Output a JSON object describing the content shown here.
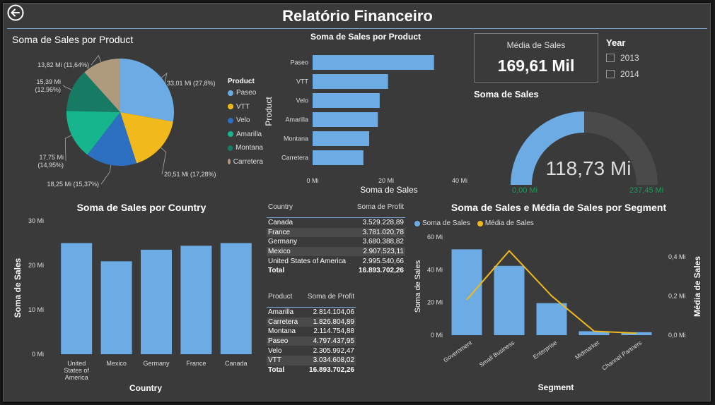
{
  "header": {
    "title": "Relatório Financeiro"
  },
  "colors": {
    "blue": "#6cabe3",
    "yellow": "#f2b91c",
    "darkblue": "#2d6fc1",
    "teal": "#17b58d",
    "darkteal": "#177a63",
    "tan": "#b09a7d",
    "gaugeBlue": "#6cabe3",
    "gaugeGreen": "#1e9a5a"
  },
  "pie_section": {
    "title": "Soma de Sales por Product",
    "legend_title": "Product"
  },
  "product_bar_section": {
    "title": "Soma de Sales por Product"
  },
  "card": {
    "label": "Média de Sales",
    "value": "169,61 Mil"
  },
  "year_slicer": {
    "title": "Year",
    "options": [
      "2013",
      "2014"
    ]
  },
  "gauge": {
    "title": "Soma de Sales",
    "value_text": "118,73 Mi",
    "min_label": "0,00 Mi",
    "max_label": "237,45 Mi"
  },
  "country_bar_section": {
    "title": "Soma de Sales por Country"
  },
  "combo_section": {
    "title": "Soma de Sales e Média de Sales por Segment",
    "legend": [
      "Soma de  Sales",
      "Média de  Sales"
    ]
  },
  "country_table": {
    "headers": [
      "Country",
      "Soma de Profit"
    ],
    "rows": [
      [
        "Canada",
        "3.529.228,89"
      ],
      [
        "France",
        "3.781.020,78"
      ],
      [
        "Germany",
        "3.680.388,82"
      ],
      [
        "Mexico",
        "2.907.523,11"
      ],
      [
        "United States of America",
        "2.995.540,66"
      ]
    ],
    "total": [
      "Total",
      "16.893.702,26"
    ]
  },
  "product_table": {
    "headers": [
      "Product",
      "Soma de Profit"
    ],
    "rows": [
      [
        "Amarilla",
        "2.814.104,06"
      ],
      [
        "Carretera",
        "1.826.804,89"
      ],
      [
        "Montana",
        "2.114.754,88"
      ],
      [
        "Paseo",
        "4.797.437,95"
      ],
      [
        "Velo",
        "2.305.992,47"
      ],
      [
        "VTT",
        "3.034.608,02"
      ]
    ],
    "total": [
      "Total",
      "16.893.702,26"
    ]
  },
  "chart_data": [
    {
      "type": "pie",
      "title": "Soma de Sales por Product",
      "legend_title": "Product",
      "categories": [
        "Paseo",
        "VTT",
        "Velo",
        "Amarilla",
        "Montana",
        "Carretera"
      ],
      "values": [
        33.01,
        20.51,
        18.25,
        17.75,
        15.39,
        13.82
      ],
      "labels": [
        "33,01 Mi (27,8%)",
        "20,51 Mi (17,28%)",
        "18,25 Mi (15,37%)",
        "17,75 Mi (14,95%)",
        "15,39 Mi (12,96%)",
        "13,82 Mi (11,64%)"
      ]
    },
    {
      "type": "bar",
      "orientation": "horizontal",
      "title": "Soma de Sales por Product",
      "categories": [
        "Paseo",
        "VTT",
        "Velo",
        "Amarilla",
        "Montana",
        "Carretera"
      ],
      "values": [
        33.01,
        20.51,
        18.25,
        17.75,
        15.39,
        13.82
      ],
      "xlabel": "Soma de Sales",
      "ylabel": "Product",
      "xlim": [
        0,
        40
      ],
      "xticks": [
        "0 Mi",
        "20 Mi",
        "40 Mi"
      ]
    },
    {
      "type": "bar",
      "title": "Soma de Sales por Country",
      "categories": [
        "United States of America",
        "Mexico",
        "Germany",
        "France",
        "Canada"
      ],
      "tick_labels": [
        [
          "United",
          "States of",
          "America"
        ],
        [
          "Mexico"
        ],
        [
          "Germany"
        ],
        [
          "France"
        ],
        [
          "Canada"
        ]
      ],
      "values": [
        25.0,
        20.9,
        23.5,
        24.4,
        25.0
      ],
      "xlabel": "Country",
      "ylabel": "Soma de Sales",
      "ylim": [
        0,
        30
      ],
      "yticks": [
        "0 Mi",
        "10 Mi",
        "20 Mi",
        "30 Mi"
      ]
    },
    {
      "type": "bar",
      "title": "Soma de Sales e Média de Sales por Segment",
      "categories": [
        "Government",
        "Small Business",
        "Enterprise",
        "Midmarket",
        "Channel Partners"
      ],
      "series": [
        {
          "name": "Soma de  Sales",
          "type": "bar",
          "values": [
            52.5,
            42.4,
            19.6,
            2.4,
            1.8
          ]
        },
        {
          "name": "Média de  Sales",
          "type": "line",
          "values": [
            0.18,
            0.43,
            0.2,
            0.02,
            0.01
          ]
        }
      ],
      "xlabel": "Segment",
      "ylabel": "Soma de Sales",
      "y2label": "Média de Sales",
      "ylim": [
        0,
        60
      ],
      "y2lim": [
        0,
        0.5
      ],
      "yticks": [
        "0 Mi",
        "20 Mi",
        "40 Mi",
        "60 Mi"
      ],
      "y2ticks": [
        "0,0 Mi",
        "0,2 Mi",
        "0,4 Mi"
      ]
    },
    {
      "type": "gauge",
      "title": "Soma de Sales",
      "value": 118.73,
      "min": 0,
      "max": 237.45
    }
  ]
}
